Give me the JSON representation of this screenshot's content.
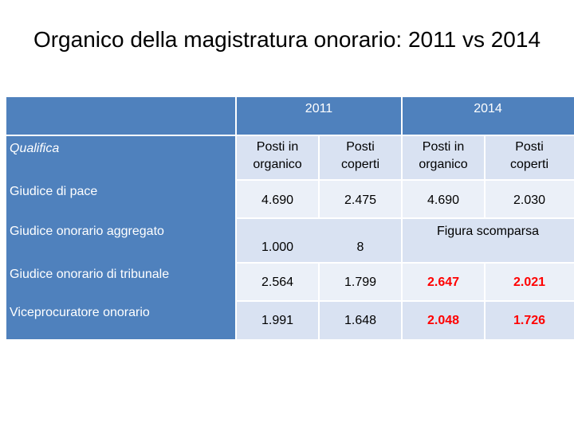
{
  "title": "Organico della magistratura onorario: 2011 vs 2014",
  "table": {
    "year_2011": "2011",
    "year_2014": "2014",
    "qualifica_header": "Qualifica",
    "col_1": "Posti in organico",
    "col_2": "Posti coperti",
    "col_3": "Posti in organico",
    "col_4": "Posti coperti",
    "rows": [
      {
        "label": "Giudice di pace",
        "v2011_org": "4.690",
        "v2011_cop": "2.475",
        "v2014_org": "4.690",
        "v2014_cop": "2.030"
      },
      {
        "label": "Giudice onorario aggregato",
        "v2011_org": "1.000",
        "v2011_cop": "8",
        "v2014_note": "Figura scomparsa"
      },
      {
        "label": "Giudice onorario di tribunale",
        "v2011_org": "2.564",
        "v2011_cop": "1.799",
        "v2014_org": "2.647",
        "v2014_cop": "2.021"
      },
      {
        "label": "Viceprocuratore onorario",
        "v2011_org": "1.991",
        "v2011_cop": "1.648",
        "v2014_org": "2.048",
        "v2014_cop": "1.726"
      }
    ],
    "highlight_color": "#ff0000",
    "header_color": "#4f81bd"
  }
}
